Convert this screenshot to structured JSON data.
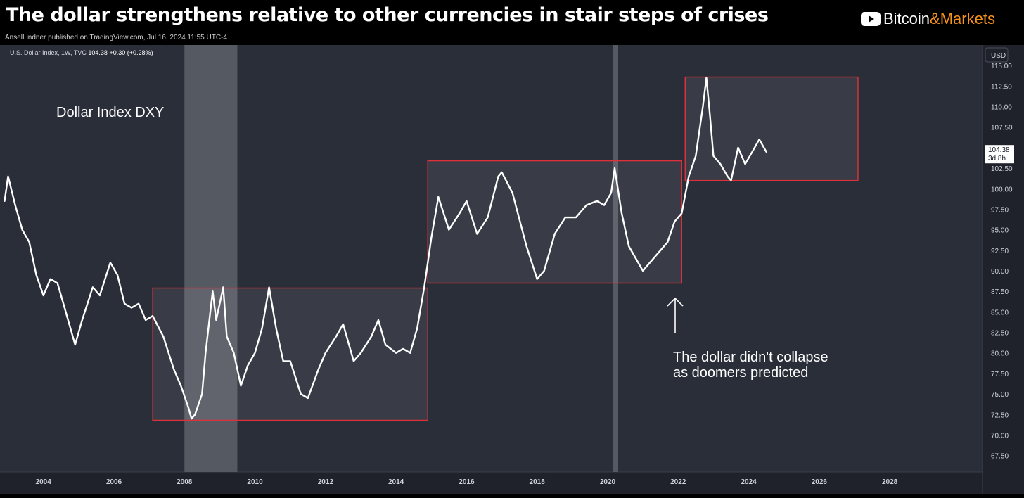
{
  "header": {
    "title": "The dollar strengthens relative to other currencies in stair steps of crises",
    "publisher": "AnselLindner published on TradingView.com, Jul 16, 2024 11:55 UTC-4",
    "brand_main": "Bitcoin",
    "brand_accent": "&Markets",
    "brand_icon": "youtube-play-icon"
  },
  "legend": {
    "symbol": "U.S. Dollar Index, 1W, TVC",
    "last": "104.38",
    "change": "+0.30 (+0.28%)"
  },
  "annotations": {
    "chart_label": "Dollar Index DXY",
    "note_line1": "The dollar didn't collapse",
    "note_line2": "as doomers predicted"
  },
  "price_scale": {
    "currency": "USD",
    "last_price": "104.38",
    "countdown": "3d 8h"
  },
  "colors": {
    "background": "#2a2e39",
    "line": "#ffffff",
    "box_border": "#e0313a",
    "recession_band": "#5d6068"
  },
  "chart_data": {
    "type": "line",
    "title": "Dollar Index DXY",
    "xlabel": "",
    "ylabel": "",
    "xlim": [
      2002.8,
      2030.6
    ],
    "ylim": [
      65.5,
      117.5
    ],
    "x_ticks": [
      "2004",
      "2006",
      "2008",
      "2010",
      "2012",
      "2014",
      "2016",
      "2018",
      "2020",
      "2022",
      "2024",
      "2026",
      "2028"
    ],
    "y_ticks": [
      "67.50",
      "70.00",
      "72.50",
      "75.00",
      "77.50",
      "80.00",
      "82.50",
      "85.00",
      "87.50",
      "90.00",
      "92.50",
      "95.00",
      "97.50",
      "100.00",
      "102.50",
      "105.00",
      "107.50",
      "110.00",
      "112.50",
      "115.00"
    ],
    "series": [
      {
        "x": [
          2002.9,
          2003.0,
          2003.2,
          2003.4,
          2003.6,
          2003.8,
          2004.0,
          2004.2,
          2004.4,
          2004.6,
          2004.9,
          2005.1,
          2005.4,
          2005.6,
          2005.9,
          2006.1,
          2006.3,
          2006.5,
          2006.7,
          2006.9,
          2007.1,
          2007.4,
          2007.7,
          2007.9,
          2008.1,
          2008.2,
          2008.3,
          2008.5,
          2008.6,
          2008.8,
          2008.9,
          2009.0,
          2009.1,
          2009.2,
          2009.4,
          2009.6,
          2009.8,
          2010.0,
          2010.2,
          2010.4,
          2010.6,
          2010.8,
          2011.0,
          2011.3,
          2011.5,
          2011.8,
          2012.0,
          2012.3,
          2012.5,
          2012.8,
          2013.0,
          2013.3,
          2013.5,
          2013.7,
          2014.0,
          2014.2,
          2014.4,
          2014.6,
          2014.8,
          2015.0,
          2015.2,
          2015.5,
          2015.8,
          2016.0,
          2016.3,
          2016.6,
          2016.9,
          2017.0,
          2017.3,
          2017.7,
          2018.0,
          2018.2,
          2018.5,
          2018.8,
          2019.1,
          2019.4,
          2019.7,
          2019.9,
          2020.1,
          2020.2,
          2020.4,
          2020.6,
          2020.8,
          2021.0,
          2021.2,
          2021.5,
          2021.7,
          2021.9,
          2022.1,
          2022.3,
          2022.5,
          2022.7,
          2022.8,
          2022.9,
          2023.0,
          2023.2,
          2023.4,
          2023.5,
          2023.7,
          2023.9,
          2024.1,
          2024.3,
          2024.5
        ],
        "values": [
          98.5,
          101.5,
          98.0,
          95.0,
          93.5,
          89.5,
          87.0,
          89.0,
          88.5,
          85.5,
          81.0,
          84.0,
          88.0,
          87.0,
          91.0,
          89.5,
          86.0,
          85.5,
          86.0,
          84.0,
          84.5,
          82.0,
          78.0,
          76.0,
          73.5,
          72.0,
          72.5,
          75.0,
          80.0,
          87.5,
          84.0,
          86.0,
          88.0,
          82.0,
          80.0,
          76.0,
          78.5,
          80.0,
          83.0,
          88.0,
          83.0,
          79.0,
          79.0,
          75.0,
          74.5,
          78.0,
          80.0,
          82.0,
          83.5,
          79.0,
          80.0,
          82.0,
          84.0,
          81.0,
          80.0,
          80.5,
          80.0,
          83.0,
          88.0,
          94.0,
          99.0,
          95.0,
          97.0,
          98.5,
          94.5,
          96.5,
          101.5,
          102.0,
          99.5,
          93.0,
          89.0,
          90.0,
          94.5,
          96.5,
          96.5,
          98.0,
          98.5,
          98.0,
          99.5,
          102.5,
          97.0,
          93.0,
          91.5,
          90.0,
          91.0,
          92.5,
          93.5,
          96.0,
          97.0,
          101.5,
          104.0,
          110.0,
          113.5,
          109.0,
          104.0,
          103.0,
          101.5,
          101.0,
          105.0,
          103.0,
          104.5,
          106.0,
          104.5
        ]
      }
    ],
    "ranges": [
      {
        "x": [
          2007.1,
          2014.9
        ],
        "y": [
          71.8,
          87.9
        ]
      },
      {
        "x": [
          2014.9,
          2022.1
        ],
        "y": [
          88.5,
          103.4
        ]
      },
      {
        "x": [
          2022.2,
          2027.1
        ],
        "y": [
          101.0,
          113.6
        ]
      }
    ],
    "recessions": [
      [
        2008.0,
        2009.5
      ],
      [
        2020.15,
        2020.3
      ]
    ],
    "grid": false,
    "legend": "top-left"
  }
}
